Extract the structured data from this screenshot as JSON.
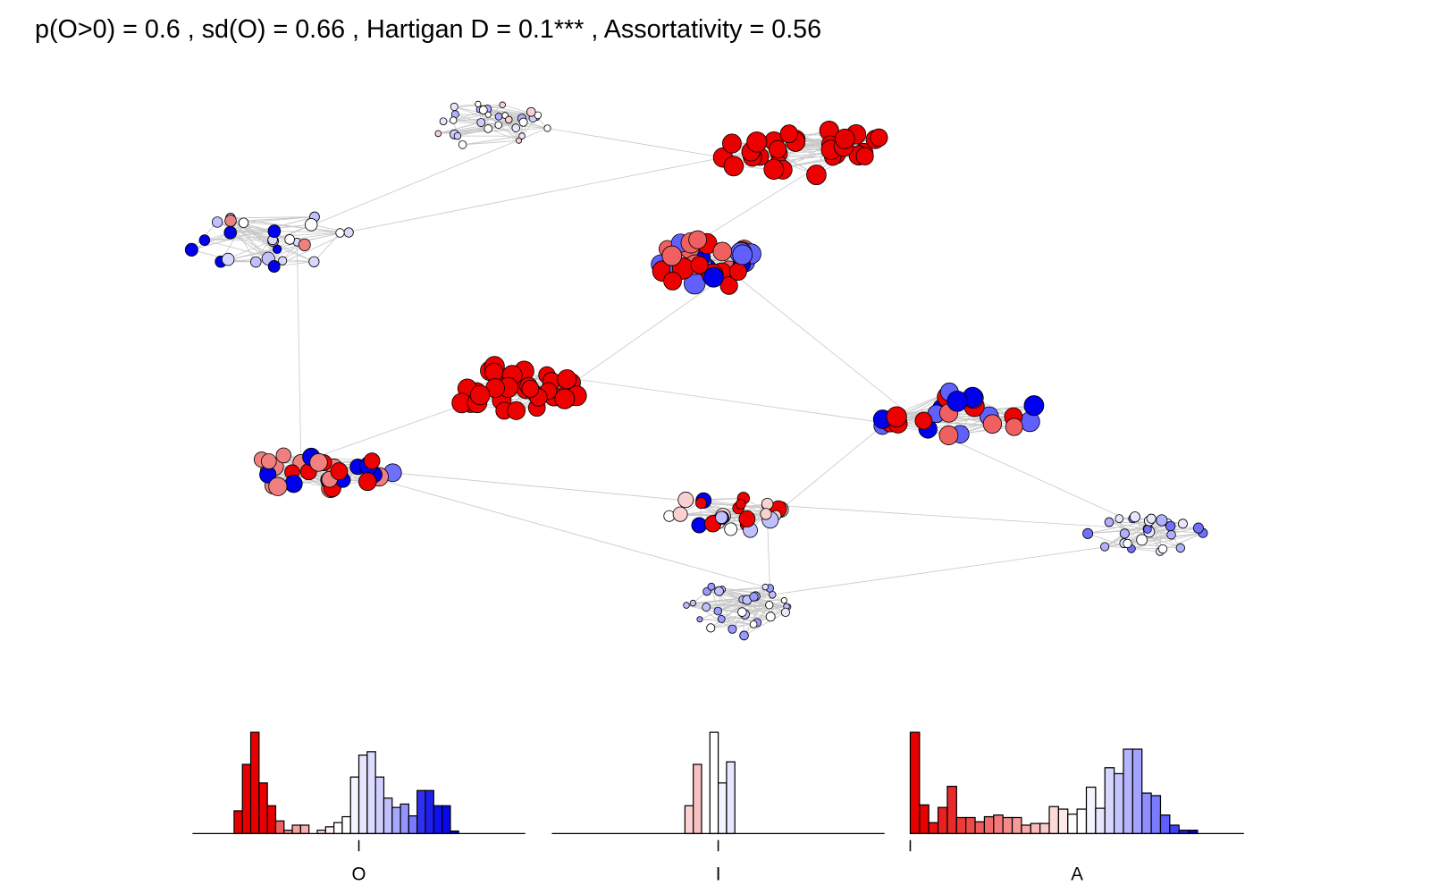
{
  "chart_data": [
    {
      "type": "network",
      "title": "p(O>0) = 0.6 , sd(O) = 0.66 , Hartigan D = 0.1*** , Assortativity = 0.56"
    },
    {
      "type": "histogram",
      "xlabel": "O",
      "xlim": [
        -1,
        1
      ],
      "ylim": [
        0,
        12
      ],
      "xticks": [
        0
      ],
      "bins": [
        -0.75,
        -0.7,
        -0.65,
        -0.6,
        -0.55,
        -0.5,
        -0.45,
        -0.4,
        -0.35,
        -0.3,
        -0.25,
        -0.2,
        -0.15,
        -0.1,
        -0.05,
        0,
        0.05,
        0.1,
        0.15,
        0.2,
        0.25,
        0.3,
        0.35,
        0.4,
        0.45,
        0.5,
        0.55,
        0.6
      ],
      "values": [
        2.7,
        8.2,
        12,
        6,
        3.3,
        1.5,
        0.4,
        1,
        1,
        0,
        0.4,
        0.8,
        1.3,
        2,
        6.7,
        9.3,
        9.7,
        6.7,
        4.2,
        3.1,
        3.5,
        2.1,
        5.1,
        5.1,
        3.3,
        3.3,
        0.3
      ],
      "colors": [
        "#e60000",
        "#e60000",
        "#e60000",
        "#e60000",
        "#e60000",
        "#f06060",
        "#f39090",
        "#f5a0a0",
        "#f7b0b0",
        "#fbd0d0",
        "#fde0e0",
        "#fff0f0",
        "#ffffff",
        "#ffffff",
        "#f4f4ff",
        "#e6e6ff",
        "#dcdcff",
        "#d0d0ff",
        "#c0c0ff",
        "#a8a8ff",
        "#9494ff",
        "#7a7aff",
        "#3030f0",
        "#2020ee",
        "#1010ee",
        "#0808e8",
        "#0000dd"
      ]
    },
    {
      "type": "histogram",
      "xlabel": "I",
      "xlim": [
        -1,
        1
      ],
      "ylim": [
        0,
        12
      ],
      "xticks": [
        0
      ],
      "bins": [
        -0.2,
        -0.15,
        -0.1,
        -0.05,
        0,
        0.05,
        0.1
      ],
      "values": [
        3.3,
        8.2,
        0,
        12,
        6,
        8.5
      ],
      "colors": [
        "#fbd0d0",
        "#f8c0c0",
        "#ffffff",
        "#ffffff",
        "#f4f4ff",
        "#e6e6ff"
      ]
    },
    {
      "type": "histogram",
      "xlabel": "A",
      "xlim": [
        0,
        0.9
      ],
      "ylim": [
        0,
        12
      ],
      "xticks": [
        0
      ],
      "bins": [
        0,
        0.025,
        0.05,
        0.075,
        0.1,
        0.125,
        0.15,
        0.175,
        0.2,
        0.225,
        0.25,
        0.275,
        0.3,
        0.325,
        0.35,
        0.375,
        0.4,
        0.425,
        0.45,
        0.475,
        0.5,
        0.525,
        0.55,
        0.575,
        0.6,
        0.625,
        0.65,
        0.675,
        0.7,
        0.725,
        0.75,
        0.775
      ],
      "values": [
        12,
        3.4,
        1.3,
        3.1,
        5.6,
        1.9,
        1.9,
        1.4,
        2,
        2.2,
        1.9,
        1.9,
        1,
        1.2,
        1.2,
        3.2,
        2.9,
        2.3,
        2.9,
        5.5,
        3,
        7.8,
        7.1,
        10,
        10,
        4.8,
        4.5,
        2.2,
        1,
        0.4,
        0.4
      ],
      "colors": [
        "#e60000",
        "#e60000",
        "#e81010",
        "#ea2020",
        "#ea2a2a",
        "#ec3a3a",
        "#ee4a4a",
        "#f05a5a",
        "#f26a6a",
        "#f47a7a",
        "#f68a8a",
        "#f89a9a",
        "#faaaaa",
        "#fbbaba",
        "#fccaca",
        "#fddada",
        "#feeaea",
        "#ffffff",
        "#ffffff",
        "#f4f4ff",
        "#e6e6ff",
        "#d6d6ff",
        "#c6c6ff",
        "#b4b4ff",
        "#a2a2ff",
        "#8e8eff",
        "#7a7aff",
        "#5e5eff",
        "#4040f4",
        "#2020ee",
        "#0000dd"
      ]
    }
  ]
}
